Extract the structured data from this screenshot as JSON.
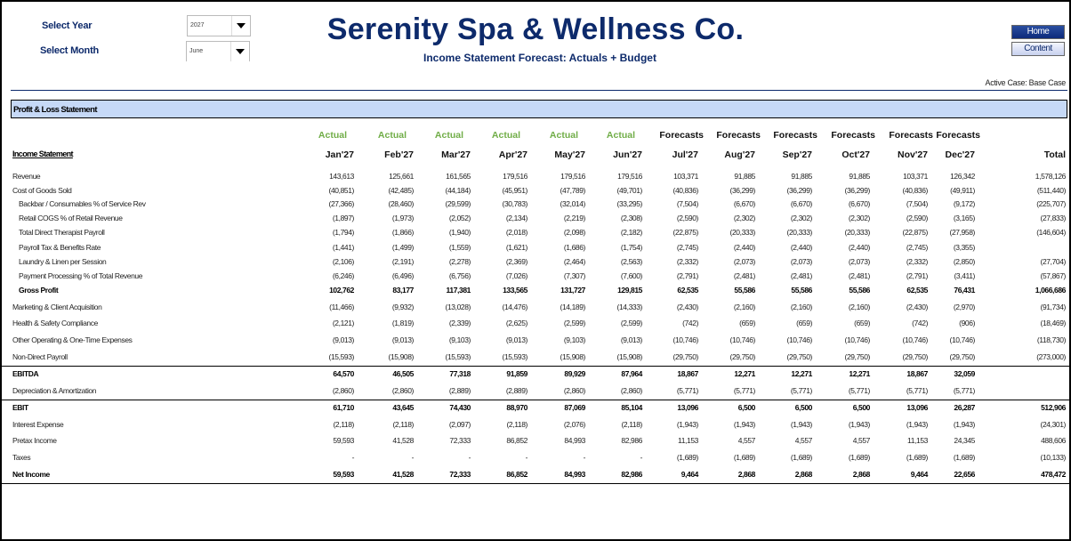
{
  "controls": {
    "year_label": "Select Year",
    "year_value": "2027",
    "month_label": "Select Month",
    "month_value": "June"
  },
  "header": {
    "title": "Serenity Spa & Wellness Co.",
    "subtitle": "Income Statement Forecast: Actuals + Budget",
    "active_case": "Active Case: Base Case"
  },
  "nav": {
    "home": "Home",
    "content": "Content"
  },
  "colors": {
    "title": "#0d2a6b",
    "band": "#c6d9f7",
    "actual": "#70ad47"
  },
  "section_title": "Profit & Loss Statement",
  "table": {
    "label_header": "Income Statement",
    "columns": [
      {
        "kind": "Actual",
        "month": "Jan'27"
      },
      {
        "kind": "Actual",
        "month": "Feb'27"
      },
      {
        "kind": "Actual",
        "month": "Mar'27"
      },
      {
        "kind": "Actual",
        "month": "Apr'27"
      },
      {
        "kind": "Actual",
        "month": "May'27"
      },
      {
        "kind": "Actual",
        "month": "Jun'27"
      },
      {
        "kind": "Forecasts",
        "month": "Jul'27"
      },
      {
        "kind": "Forecasts",
        "month": "Aug'27"
      },
      {
        "kind": "Forecasts",
        "month": "Sep'27"
      },
      {
        "kind": "Forecasts",
        "month": "Oct'27"
      },
      {
        "kind": "Forecasts",
        "month": "Nov'27"
      },
      {
        "kind": "Forecasts",
        "month": "Dec'27"
      }
    ],
    "total_header": "Total",
    "rows": [
      {
        "label": "Revenue",
        "style": "first",
        "values": [
          "143,613",
          "125,661",
          "161,565",
          "179,516",
          "179,516",
          "179,516",
          "103,371",
          "91,885",
          "91,885",
          "91,885",
          "103,371",
          "126,342"
        ],
        "total": "1,578,126"
      },
      {
        "label": "Cost of Goods Sold",
        "style": "first",
        "values": [
          "(40,851)",
          "(42,485)",
          "(44,184)",
          "(45,951)",
          "(47,789)",
          "(49,701)",
          "(40,836)",
          "(36,299)",
          "(36,299)",
          "(36,299)",
          "(40,836)",
          "(49,911)"
        ],
        "total": "(511,440)"
      },
      {
        "label": "Backbar / Consumables % of Service Rev",
        "style": "sub",
        "values": [
          "(27,366)",
          "(28,460)",
          "(29,599)",
          "(30,783)",
          "(32,014)",
          "(33,295)",
          "(7,504)",
          "(6,670)",
          "(6,670)",
          "(6,670)",
          "(7,504)",
          "(9,172)"
        ],
        "total": "(225,707)"
      },
      {
        "label": "Retail COGS % of Retail Revenue",
        "style": "sub",
        "values": [
          "(1,897)",
          "(1,973)",
          "(2,052)",
          "(2,134)",
          "(2,219)",
          "(2,308)",
          "(2,590)",
          "(2,302)",
          "(2,302)",
          "(2,302)",
          "(2,590)",
          "(3,165)"
        ],
        "total": "(27,833)"
      },
      {
        "label": "Total Direct Therapist Payroll",
        "style": "sub",
        "values": [
          "(1,794)",
          "(1,866)",
          "(1,940)",
          "(2,018)",
          "(2,098)",
          "(2,182)",
          "(22,875)",
          "(20,333)",
          "(20,333)",
          "(20,333)",
          "(22,875)",
          "(27,958)"
        ],
        "total": "(146,604)"
      },
      {
        "label": "Payroll Tax & Benefits Rate",
        "style": "sub",
        "values": [
          "(1,441)",
          "(1,499)",
          "(1,559)",
          "(1,621)",
          "(1,686)",
          "(1,754)",
          "(2,745)",
          "(2,440)",
          "(2,440)",
          "(2,440)",
          "(2,745)",
          "(3,355)"
        ],
        "total": ""
      },
      {
        "label": "Laundry & Linen per Session",
        "style": "sub",
        "values": [
          "(2,106)",
          "(2,191)",
          "(2,278)",
          "(2,369)",
          "(2,464)",
          "(2,563)",
          "(2,332)",
          "(2,073)",
          "(2,073)",
          "(2,073)",
          "(2,332)",
          "(2,850)"
        ],
        "total": "(27,704)"
      },
      {
        "label": "Payment Processing % of Total Revenue",
        "style": "sub",
        "values": [
          "(6,246)",
          "(6,496)",
          "(6,756)",
          "(7,026)",
          "(7,307)",
          "(7,600)",
          "(2,791)",
          "(2,481)",
          "(2,481)",
          "(2,481)",
          "(2,791)",
          "(3,411)"
        ],
        "total": "(57,867)"
      },
      {
        "label": "Gross Profit",
        "style": "bold gp",
        "values": [
          "102,762",
          "83,177",
          "117,381",
          "133,565",
          "131,727",
          "129,815",
          "62,535",
          "55,586",
          "55,586",
          "55,586",
          "62,535",
          "76,431"
        ],
        "total": "1,066,686"
      },
      {
        "label": "Marketing & Client Acquisition",
        "style": "",
        "values": [
          "(11,466)",
          "(9,932)",
          "(13,028)",
          "(14,476)",
          "(14,189)",
          "(14,333)",
          "(2,430)",
          "(2,160)",
          "(2,160)",
          "(2,160)",
          "(2,430)",
          "(2,970)"
        ],
        "total": "(91,734)"
      },
      {
        "label": "Health & Safety Compliance",
        "style": "",
        "values": [
          "(2,121)",
          "(1,819)",
          "(2,339)",
          "(2,625)",
          "(2,599)",
          "(2,599)",
          "(742)",
          "(659)",
          "(659)",
          "(659)",
          "(742)",
          "(906)"
        ],
        "total": "(18,469)"
      },
      {
        "label": "Other Operating & One-Time Expenses",
        "style": "",
        "values": [
          "(9,013)",
          "(9,013)",
          "(9,103)",
          "(9,013)",
          "(9,103)",
          "(9,013)",
          "(10,746)",
          "(10,746)",
          "(10,746)",
          "(10,746)",
          "(10,746)",
          "(10,746)"
        ],
        "total": "(118,730)"
      },
      {
        "label": "Non-Direct Payroll",
        "style": "line",
        "values": [
          "(15,593)",
          "(15,908)",
          "(15,593)",
          "(15,593)",
          "(15,908)",
          "(15,908)",
          "(29,750)",
          "(29,750)",
          "(29,750)",
          "(29,750)",
          "(29,750)",
          "(29,750)"
        ],
        "total": "(273,000)"
      },
      {
        "label": "EBITDA",
        "style": "bold",
        "values": [
          "64,570",
          "46,505",
          "77,318",
          "91,859",
          "89,929",
          "87,964",
          "18,867",
          "12,271",
          "12,271",
          "12,271",
          "18,867",
          "32,059"
        ],
        "total": ""
      },
      {
        "label": "Depreciation & Amortization",
        "style": "line",
        "values": [
          "(2,860)",
          "(2,860)",
          "(2,889)",
          "(2,889)",
          "(2,860)",
          "(2,860)",
          "(5,771)",
          "(5,771)",
          "(5,771)",
          "(5,771)",
          "(5,771)",
          "(5,771)"
        ],
        "total": ""
      },
      {
        "label": "EBIT",
        "style": "bold",
        "values": [
          "61,710",
          "43,645",
          "74,430",
          "88,970",
          "87,069",
          "85,104",
          "13,096",
          "6,500",
          "6,500",
          "6,500",
          "13,096",
          "26,287"
        ],
        "total": "512,906"
      },
      {
        "label": "Interest Expense",
        "style": "",
        "values": [
          "(2,118)",
          "(2,118)",
          "(2,097)",
          "(2,118)",
          "(2,076)",
          "(2,118)",
          "(1,943)",
          "(1,943)",
          "(1,943)",
          "(1,943)",
          "(1,943)",
          "(1,943)"
        ],
        "total": "(24,301)"
      },
      {
        "label": "Pretax Income",
        "style": "",
        "values": [
          "59,593",
          "41,528",
          "72,333",
          "86,852",
          "84,993",
          "82,986",
          "11,153",
          "4,557",
          "4,557",
          "4,557",
          "11,153",
          "24,345"
        ],
        "total": "488,606"
      },
      {
        "label": "Taxes",
        "style": "",
        "values": [
          "-",
          "-",
          "-",
          "-",
          "-",
          "-",
          "(1,689)",
          "(1,689)",
          "(1,689)",
          "(1,689)",
          "(1,689)",
          "(1,689)"
        ],
        "total": "(10,133)"
      },
      {
        "label": "Net Income",
        "style": "bold line",
        "values": [
          "59,593",
          "41,528",
          "72,333",
          "86,852",
          "84,993",
          "82,986",
          "9,464",
          "2,868",
          "2,868",
          "2,868",
          "9,464",
          "22,656"
        ],
        "total": "478,472"
      }
    ]
  }
}
